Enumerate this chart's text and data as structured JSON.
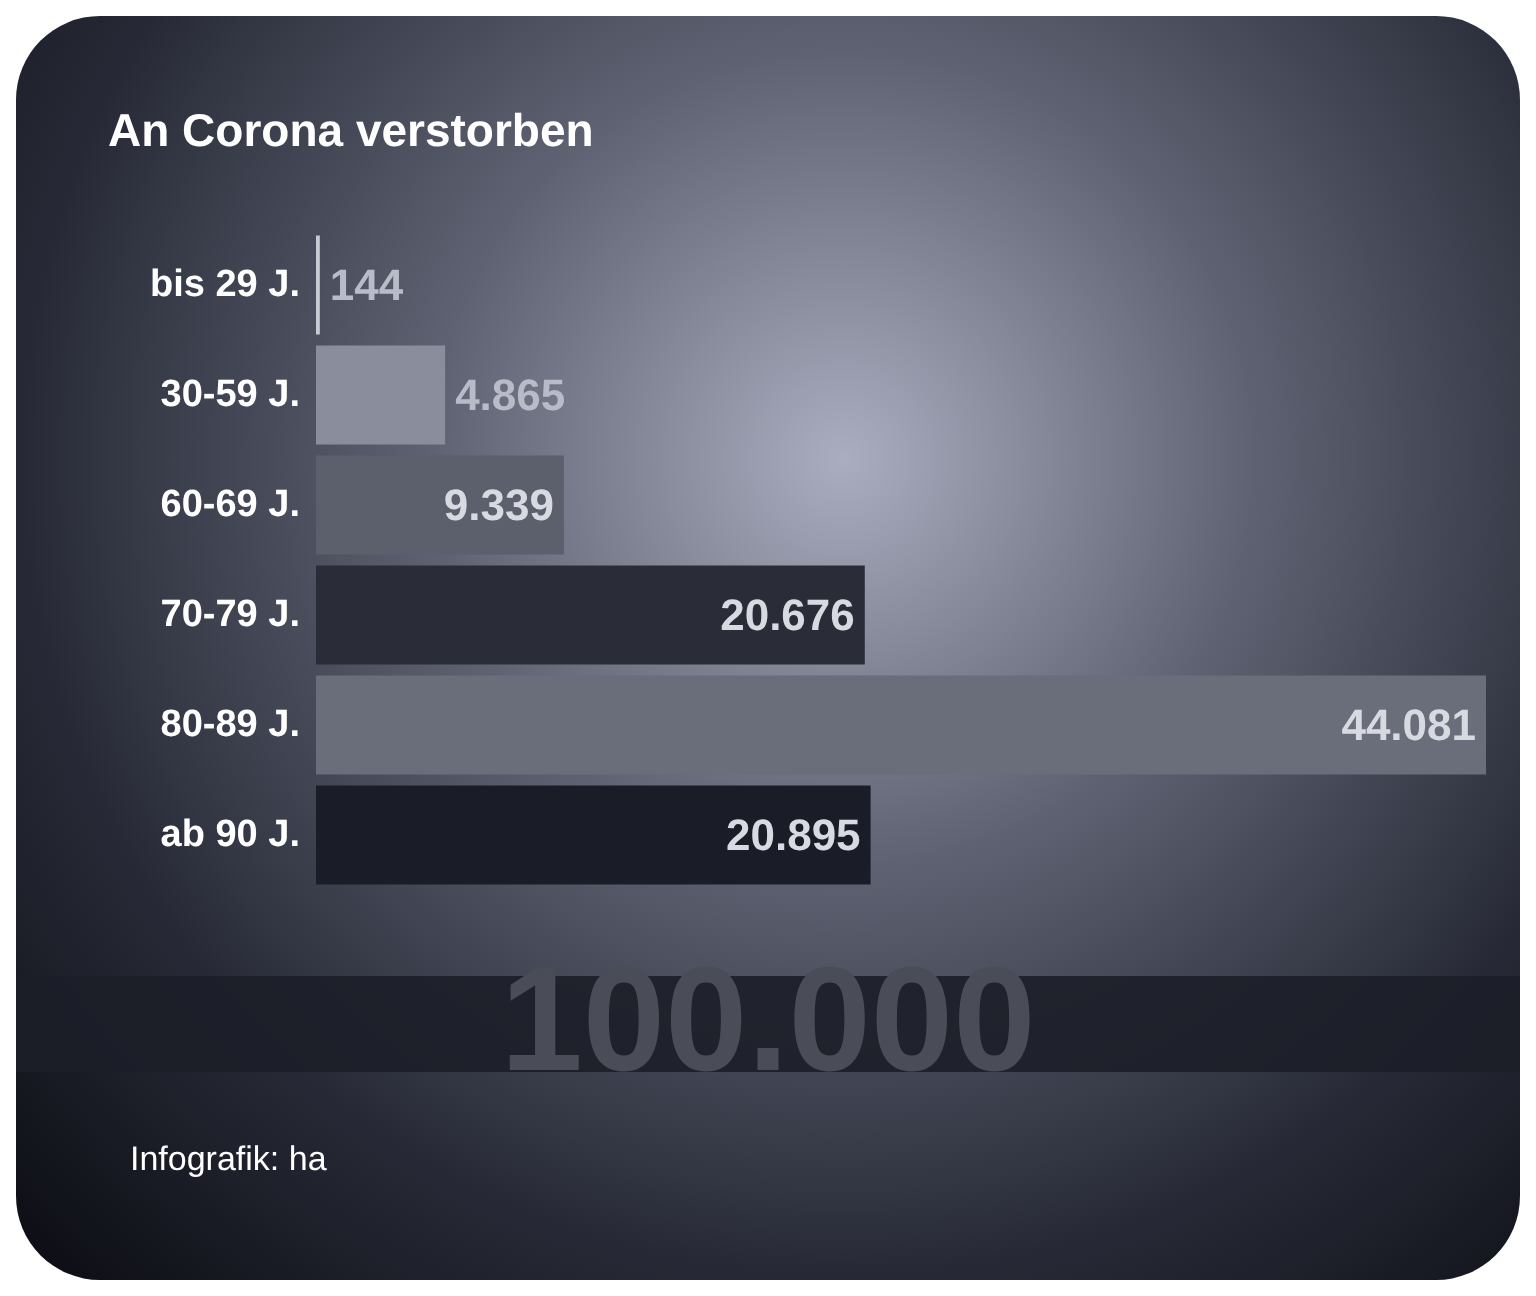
{
  "chart_data": {
    "type": "bar",
    "orientation": "horizontal",
    "title": "An Corona verstorben",
    "categories": [
      "bis 29 J.",
      "30-59 J.",
      "60-69 J.",
      "70-79 J.",
      "80-89 J.",
      "ab 90 J."
    ],
    "values": [
      144,
      4865,
      9339,
      20676,
      44081,
      20895
    ],
    "value_labels": [
      "144",
      "4.865",
      "9.339",
      "20.676",
      "44.081",
      "20.895"
    ],
    "colors": [
      "#c8cad4",
      "#8a8e9c",
      "#5c5f6c",
      "#2a2c38",
      "#6a6d7a",
      "#1a1c28"
    ],
    "annotations": [
      "100.000",
      "Infografik: ha"
    ]
  }
}
